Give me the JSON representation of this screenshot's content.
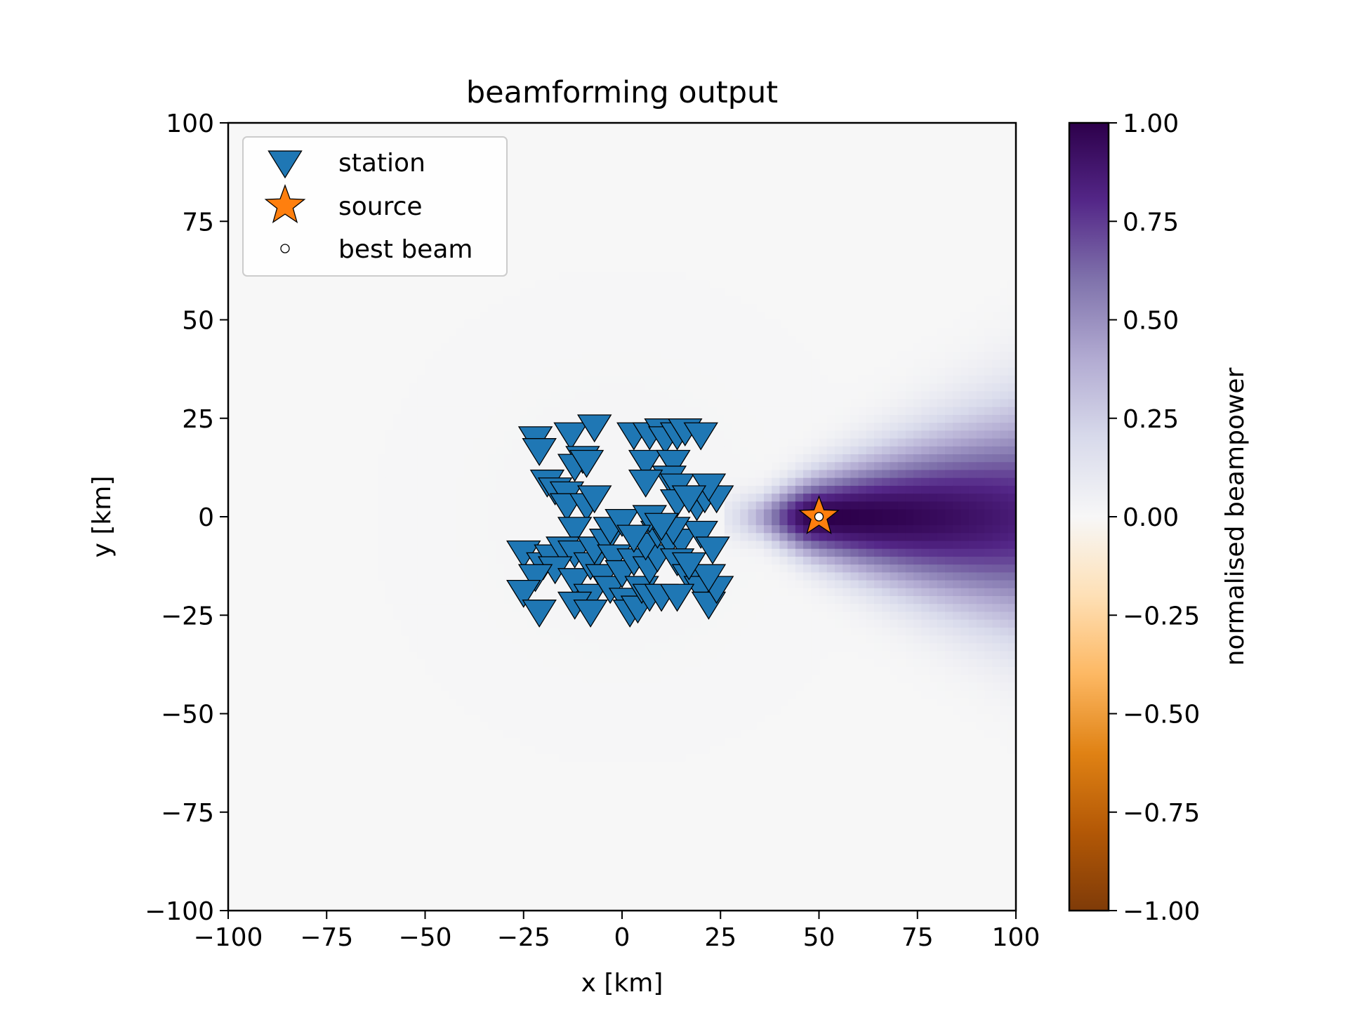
{
  "chart_data": {
    "type": "heatmap",
    "title": "beamforming output",
    "xlabel": "x [km]",
    "ylabel": "y [km]",
    "xlim": [
      -100,
      100
    ],
    "ylim": [
      -100,
      100
    ],
    "x_ticks": [
      -100,
      -75,
      -50,
      -25,
      0,
      25,
      50,
      75,
      100
    ],
    "y_ticks": [
      -100,
      -75,
      -50,
      -25,
      0,
      25,
      50,
      75,
      100
    ],
    "x_tick_labels": [
      "−100",
      "−75",
      "−50",
      "−25",
      "0",
      "25",
      "50",
      "75",
      "100"
    ],
    "y_tick_labels": [
      "−100",
      "−75",
      "−50",
      "−25",
      "0",
      "25",
      "50",
      "75",
      "100"
    ],
    "grid": false,
    "legend_position": "top-left",
    "colorbar": {
      "label": "normalised beampower",
      "range": [
        -1,
        1
      ],
      "ticks": [
        -1,
        -0.75,
        -0.5,
        -0.25,
        0,
        0.25,
        0.5,
        0.75,
        1
      ],
      "tick_labels": [
        "−1.00",
        "−0.75",
        "−0.50",
        "−0.25",
        "0.00",
        "0.25",
        "0.50",
        "0.75",
        "1.00"
      ],
      "colormap": "PuOr",
      "colormap_stops": [
        "#7f3b08",
        "#b35806",
        "#e08214",
        "#fdb863",
        "#fee0b6",
        "#f7f7f7",
        "#d8daeb",
        "#b2abd2",
        "#8073ac",
        "#542788",
        "#2d004b"
      ]
    },
    "beam_peak": {
      "x": 50,
      "y": 0,
      "value": 1.0
    },
    "series": [
      {
        "name": "station",
        "type": "scatter",
        "marker": "triangle-down",
        "color": "#1f77b4",
        "points": [
          [
            -22,
            20
          ],
          [
            -21,
            17
          ],
          [
            -13,
            21
          ],
          [
            -7,
            23
          ],
          [
            -10,
            15
          ],
          [
            -12,
            13
          ],
          [
            -9,
            14
          ],
          [
            -19,
            9
          ],
          [
            -17,
            7
          ],
          [
            -14,
            6
          ],
          [
            -14,
            3
          ],
          [
            -9,
            3
          ],
          [
            -7,
            5
          ],
          [
            -12,
            -3
          ],
          [
            -25,
            -9
          ],
          [
            -20,
            -12
          ],
          [
            -18,
            -10
          ],
          [
            -15,
            -8
          ],
          [
            -12,
            -9
          ],
          [
            -17,
            -13
          ],
          [
            -22,
            -15
          ],
          [
            -25,
            -19
          ],
          [
            -21,
            -24
          ],
          [
            -12,
            -16
          ],
          [
            -8,
            -12
          ],
          [
            -7,
            -8
          ],
          [
            -4,
            -6
          ],
          [
            -3,
            -3
          ],
          [
            0,
            -1
          ],
          [
            -2,
            -10
          ],
          [
            -5,
            -15
          ],
          [
            -8,
            -20
          ],
          [
            -12,
            -22
          ],
          [
            -8,
            -24
          ],
          [
            -3,
            -18
          ],
          [
            0,
            -14
          ],
          [
            3,
            -11
          ],
          [
            1,
            -21
          ],
          [
            2,
            -24
          ],
          [
            4,
            -23
          ],
          [
            5,
            -18
          ],
          [
            7,
            -20
          ],
          [
            10,
            -20
          ],
          [
            7,
            -13
          ],
          [
            9,
            -10
          ],
          [
            6,
            -7
          ],
          [
            9,
            -4
          ],
          [
            12,
            -6
          ],
          [
            15,
            -6
          ],
          [
            14,
            -11
          ],
          [
            17,
            -15
          ],
          [
            20,
            -4
          ],
          [
            23,
            -8
          ],
          [
            20,
            -18
          ],
          [
            22,
            -22
          ],
          [
            24,
            -18
          ],
          [
            22,
            -15
          ],
          [
            14,
            -20
          ],
          [
            17,
            -12
          ],
          [
            13,
            -3
          ],
          [
            7,
            0
          ],
          [
            3,
            -5
          ],
          [
            3,
            21
          ],
          [
            7,
            21
          ],
          [
            10,
            22
          ],
          [
            11,
            20
          ],
          [
            14,
            21
          ],
          [
            16,
            22
          ],
          [
            20,
            21
          ],
          [
            6,
            14
          ],
          [
            13,
            14
          ],
          [
            12,
            10
          ],
          [
            14,
            8
          ],
          [
            6,
            9
          ],
          [
            14,
            4
          ],
          [
            19,
            3
          ],
          [
            21,
            5
          ],
          [
            24,
            5
          ],
          [
            22,
            8
          ],
          [
            17,
            5
          ],
          [
            10,
            -2
          ]
        ]
      },
      {
        "name": "source",
        "type": "scatter",
        "marker": "star",
        "color": "#ff7f0e",
        "points": [
          [
            50,
            0
          ]
        ]
      },
      {
        "name": "best beam",
        "type": "scatter",
        "marker": "circle",
        "color": "#ffffff",
        "points": [
          [
            50,
            0
          ]
        ]
      }
    ]
  }
}
